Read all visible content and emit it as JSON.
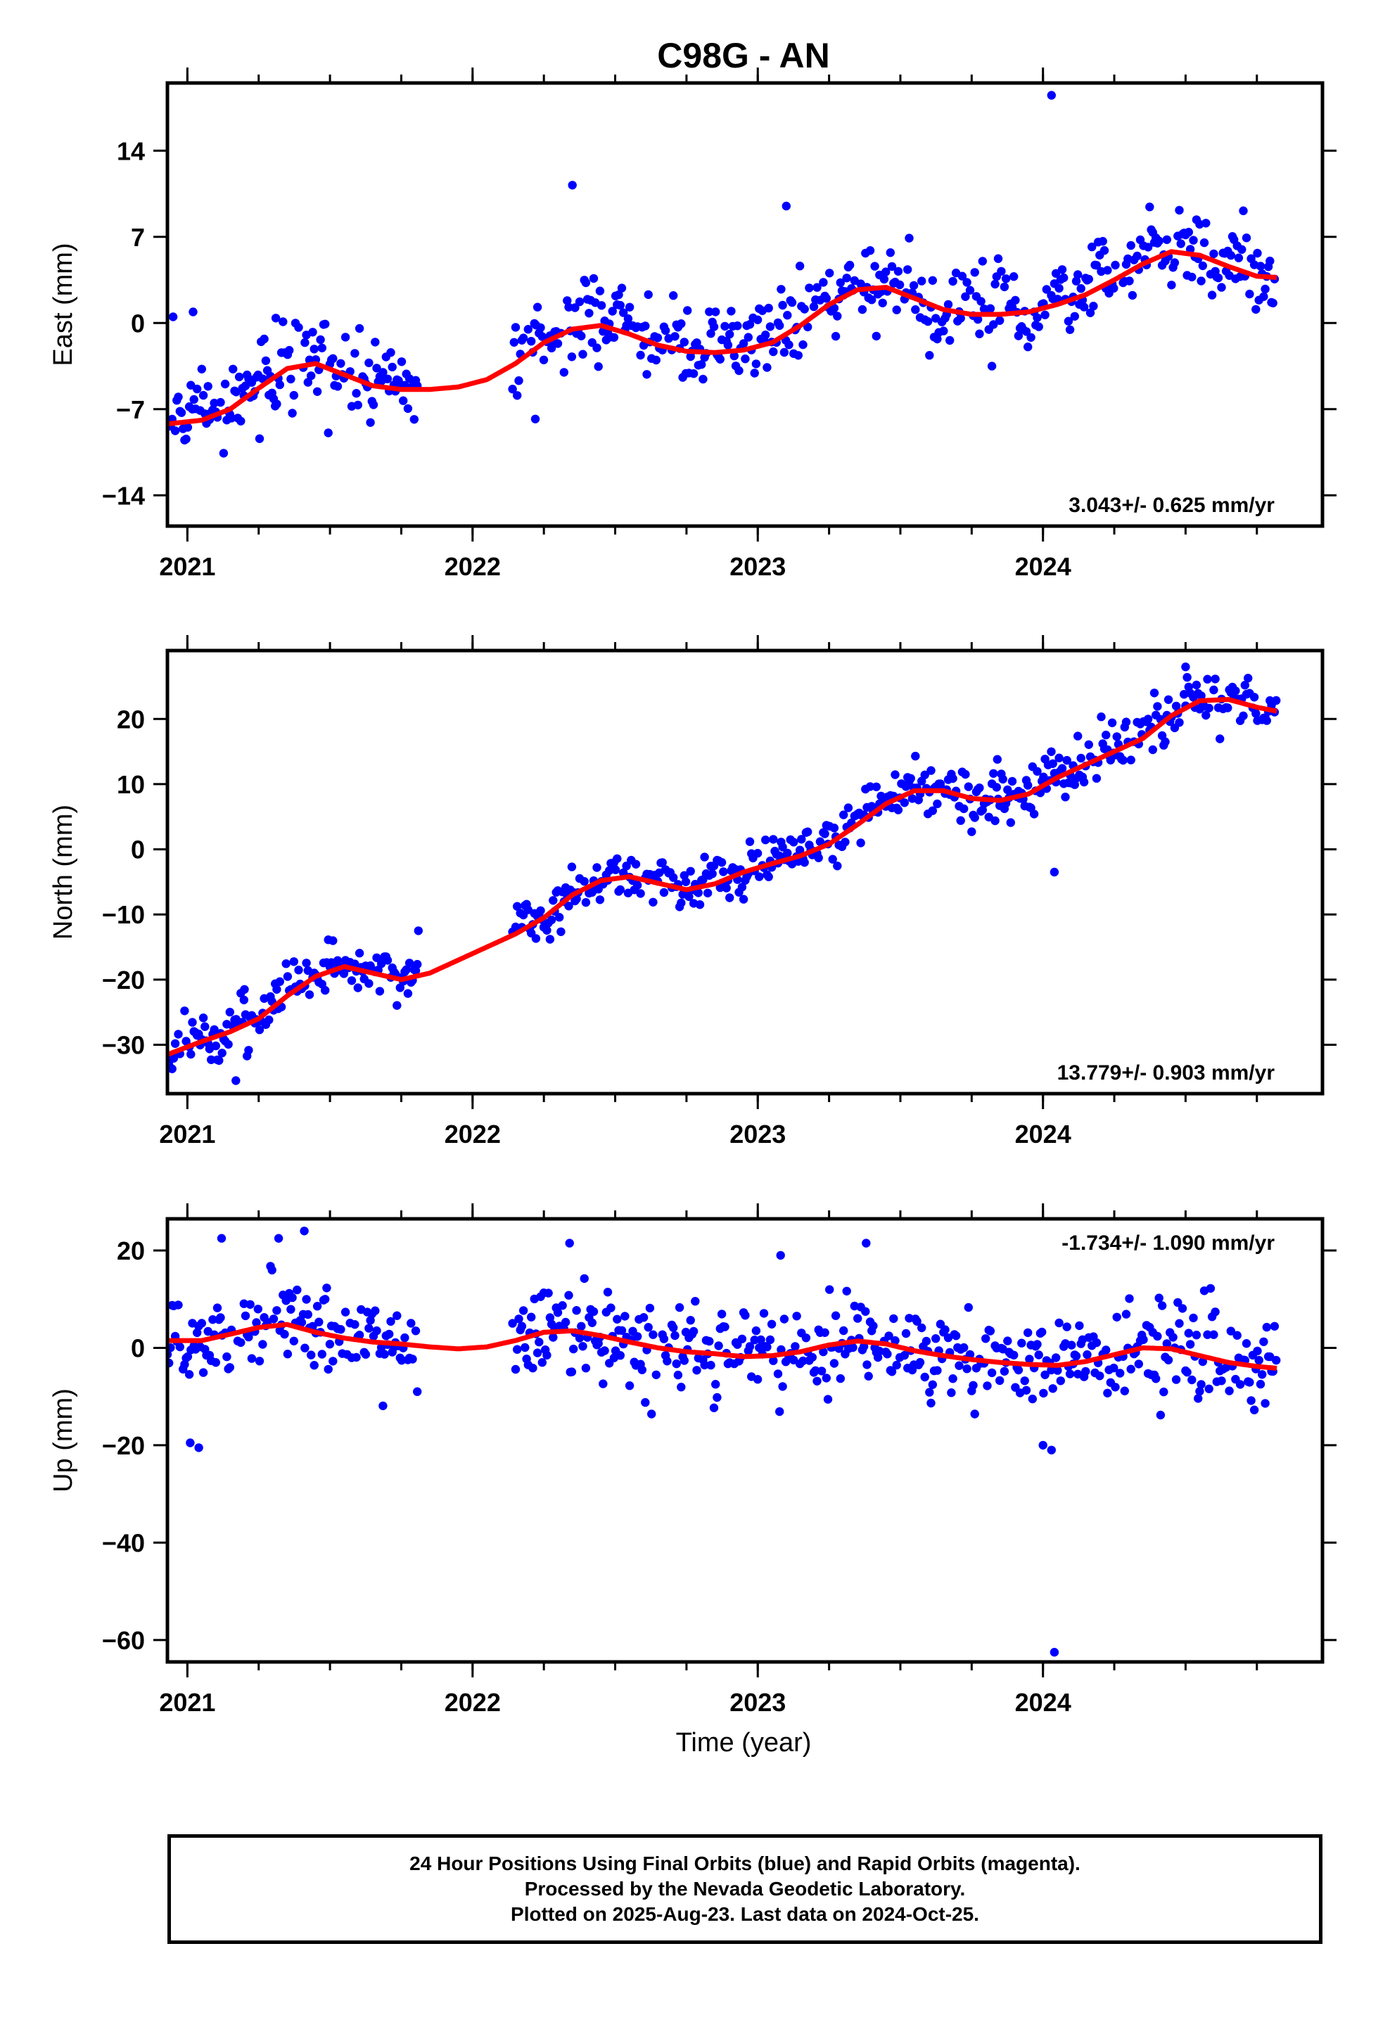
{
  "title": "C98G - AN",
  "x_axis_label": "Time (year)",
  "footer": {
    "line1": "24 Hour Positions Using Final Orbits (blue) and Rapid Orbits (magenta).",
    "line2": "Processed by the Nevada Geodetic Laboratory.",
    "line3": "Plotted on 2025-Aug-23. Last data on 2024-Oct-25."
  },
  "colors": {
    "points": "#0000ff",
    "trend": "#ff0000",
    "frame": "#000000"
  },
  "chart_data": [
    {
      "type": "scatter",
      "name": "east",
      "ylabel": "East (mm)",
      "rate_label": "3.043+/- 0.625 mm/yr",
      "rate_position": "bottom-right",
      "xlim": [
        2020.93,
        2024.98
      ],
      "ylim": [
        -16.5,
        19.5
      ],
      "x_ticks": [
        2021,
        2022,
        2023,
        2024
      ],
      "y_ticks": [
        -14,
        -7,
        0,
        7,
        14
      ],
      "trend_fit": {
        "x": [
          2020.93,
          2021.05,
          2021.15,
          2021.25,
          2021.35,
          2021.45,
          2021.55,
          2021.65,
          2021.75,
          2021.85,
          2021.95,
          2022.05,
          2022.15,
          2022.25,
          2022.35,
          2022.45,
          2022.55,
          2022.65,
          2022.75,
          2022.85,
          2022.95,
          2023.05,
          2023.15,
          2023.25,
          2023.35,
          2023.45,
          2023.55,
          2023.65,
          2023.75,
          2023.85,
          2023.95,
          2024.05,
          2024.15,
          2024.25,
          2024.35,
          2024.45,
          2024.55,
          2024.65,
          2024.75,
          2024.82
        ],
        "y": [
          -8.2,
          -7.9,
          -7.0,
          -5.3,
          -3.7,
          -3.3,
          -4.2,
          -5.1,
          -5.4,
          -5.4,
          -5.2,
          -4.6,
          -3.3,
          -1.6,
          -0.5,
          -0.2,
          -0.9,
          -1.8,
          -2.3,
          -2.4,
          -2.2,
          -1.6,
          -0.2,
          1.5,
          2.7,
          2.9,
          2.0,
          1.1,
          0.7,
          0.7,
          0.9,
          1.5,
          2.3,
          3.5,
          4.8,
          5.8,
          5.5,
          4.6,
          3.8,
          3.7
        ]
      },
      "scatter_model": {
        "segments": [
          [
            2020.93,
            2021.81
          ],
          [
            2022.14,
            2024.82
          ]
        ],
        "step_days": 2,
        "scatter_mm": 1.6
      },
      "outliers": [
        {
          "x": 2020.95,
          "y": 0.5
        },
        {
          "x": 2021.02,
          "y": 0.9
        },
        {
          "x": 2021.31,
          "y": 0.4
        },
        {
          "x": 2022.35,
          "y": 11.2
        },
        {
          "x": 2023.1,
          "y": 9.5
        },
        {
          "x": 2024.03,
          "y": 18.5
        },
        {
          "x": 2022.22,
          "y": -7.8
        }
      ]
    },
    {
      "type": "scatter",
      "name": "north",
      "ylabel": "North (mm)",
      "rate_label": "13.779+/- 0.903 mm/yr",
      "rate_position": "bottom-right",
      "xlim": [
        2020.93,
        2024.98
      ],
      "ylim": [
        -37.5,
        30.5
      ],
      "x_ticks": [
        2021,
        2022,
        2023,
        2024
      ],
      "y_ticks": [
        -30,
        -20,
        -10,
        0,
        10,
        20
      ],
      "trend_fit": {
        "x": [
          2020.93,
          2021.05,
          2021.15,
          2021.25,
          2021.35,
          2021.45,
          2021.55,
          2021.65,
          2021.75,
          2021.85,
          2021.95,
          2022.05,
          2022.15,
          2022.25,
          2022.35,
          2022.45,
          2022.55,
          2022.65,
          2022.75,
          2022.85,
          2022.95,
          2023.05,
          2023.15,
          2023.25,
          2023.35,
          2023.45,
          2023.55,
          2023.65,
          2023.75,
          2023.85,
          2023.95,
          2024.05,
          2024.15,
          2024.25,
          2024.35,
          2024.45,
          2024.55,
          2024.65,
          2024.75,
          2024.82
        ],
        "y": [
          -31.5,
          -29.5,
          -28.0,
          -26.0,
          -22.5,
          -19.5,
          -18.0,
          -19.0,
          -20.0,
          -19.0,
          -17.0,
          -15.0,
          -13.0,
          -10.5,
          -7.0,
          -4.8,
          -4.2,
          -5.2,
          -6.2,
          -5.3,
          -3.5,
          -2.2,
          -1.0,
          0.8,
          3.8,
          7.0,
          9.0,
          9.0,
          7.8,
          7.5,
          8.5,
          11.0,
          13.0,
          15.0,
          17.0,
          20.5,
          22.8,
          23.0,
          21.8,
          21.2
        ]
      },
      "scatter_model": {
        "segments": [
          [
            2020.93,
            2021.81
          ],
          [
            2022.14,
            2024.82
          ]
        ],
        "step_days": 2,
        "scatter_mm": 1.9
      },
      "outliers": [
        {
          "x": 2021.2,
          "y": -21.5
        },
        {
          "x": 2021.81,
          "y": -12.5
        },
        {
          "x": 2023.84,
          "y": 13.8
        },
        {
          "x": 2024.04,
          "y": -3.5
        },
        {
          "x": 2021.17,
          "y": -35.5
        },
        {
          "x": 2024.5,
          "y": 28.0
        }
      ]
    },
    {
      "type": "scatter",
      "name": "up",
      "ylabel": "Up (mm)",
      "rate_label": "-1.734+/- 1.090 mm/yr",
      "rate_position": "top-right",
      "xlim": [
        2020.93,
        2024.98
      ],
      "ylim": [
        -64.5,
        26.5
      ],
      "x_ticks": [
        2021,
        2022,
        2023,
        2024
      ],
      "y_ticks": [
        -60,
        -40,
        -20,
        0,
        20
      ],
      "trend_fit": {
        "x": [
          2020.93,
          2021.05,
          2021.15,
          2021.25,
          2021.35,
          2021.45,
          2021.55,
          2021.65,
          2021.75,
          2021.85,
          2021.95,
          2022.05,
          2022.15,
          2022.25,
          2022.35,
          2022.45,
          2022.55,
          2022.65,
          2022.75,
          2022.85,
          2022.95,
          2023.05,
          2023.15,
          2023.25,
          2023.35,
          2023.45,
          2023.55,
          2023.65,
          2023.75,
          2023.85,
          2023.95,
          2024.05,
          2024.15,
          2024.25,
          2024.35,
          2024.45,
          2024.55,
          2024.65,
          2024.75,
          2024.82
        ],
        "y": [
          1.5,
          1.5,
          2.8,
          4.2,
          4.8,
          3.2,
          2.0,
          1.2,
          0.8,
          0.2,
          -0.2,
          0.2,
          1.5,
          3.2,
          3.5,
          2.5,
          1.2,
          0.0,
          -0.8,
          -1.2,
          -1.8,
          -1.6,
          -0.8,
          0.6,
          1.4,
          0.8,
          -0.6,
          -1.6,
          -2.4,
          -3.0,
          -3.4,
          -3.6,
          -2.8,
          -1.4,
          0.0,
          -0.2,
          -1.6,
          -3.0,
          -3.8,
          -4.2
        ]
      },
      "scatter_model": {
        "segments": [
          [
            2020.93,
            2021.81
          ],
          [
            2022.14,
            2024.82
          ]
        ],
        "step_days": 2,
        "scatter_mm": 4.8
      },
      "outliers": [
        {
          "x": 2021.01,
          "y": -19.5
        },
        {
          "x": 2021.04,
          "y": -20.5
        },
        {
          "x": 2021.12,
          "y": 22.5
        },
        {
          "x": 2021.32,
          "y": 22.5
        },
        {
          "x": 2021.41,
          "y": 24.0
        },
        {
          "x": 2022.34,
          "y": 21.5
        },
        {
          "x": 2023.38,
          "y": 21.5
        },
        {
          "x": 2023.08,
          "y": 19.0
        },
        {
          "x": 2024.04,
          "y": -62.5
        },
        {
          "x": 2024.03,
          "y": -21.0
        },
        {
          "x": 2024.0,
          "y": -20.0
        }
      ]
    }
  ]
}
